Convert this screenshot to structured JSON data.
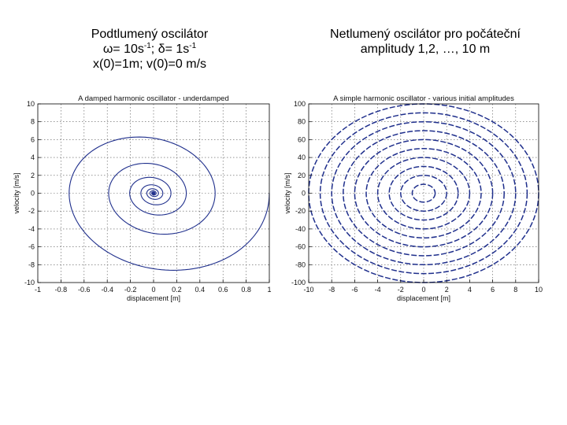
{
  "captions": {
    "left": {
      "line1": "Podtlumený oscilátor",
      "line2_a": "ω= 10s",
      "line2_sup1": "-1",
      "line2_b": "; δ= 1s",
      "line2_sup2": "-1",
      "line3": "x(0)=1m; v(0)=0 m/s"
    },
    "right": {
      "line1": "Netlumený oscilátor pro počáteční",
      "line2": "amplitudy 1,2, …, 10 m"
    }
  },
  "colors": {
    "curve": "#1f2f8c",
    "grid": "#555555",
    "axis": "#000000"
  },
  "chart_data": [
    {
      "type": "line",
      "title": "A damped harmonic oscillator - underdamped",
      "xlabel": "displacement [m]",
      "ylabel": "velocity [m/s]",
      "xlim": [
        -1,
        1
      ],
      "ylim": [
        -10,
        10
      ],
      "xticks": [
        -1,
        -0.8,
        -0.6,
        -0.4,
        -0.2,
        0,
        0.2,
        0.4,
        0.6,
        0.8,
        1
      ],
      "xtick_labels": [
        "-1",
        "-0.8",
        "-0.6",
        "-0.4",
        "-0.2",
        "0",
        "0.2",
        "0.4",
        "0.6",
        "0.8",
        "1"
      ],
      "yticks": [
        -10,
        -8,
        -6,
        -4,
        -2,
        0,
        2,
        4,
        6,
        8,
        10
      ],
      "ytick_labels": [
        "-10",
        "-8",
        "-6",
        "-4",
        "-2",
        "0",
        "2",
        "4",
        "6",
        "8",
        "10"
      ],
      "grid": true,
      "series": [
        {
          "kind": "damped-spiral",
          "omega": 10,
          "delta": 1,
          "x0": 1,
          "v0": 0
        }
      ]
    },
    {
      "type": "line",
      "title": "A simple harmonic oscillator - various initial amplitudes",
      "xlabel": "displacement [m]",
      "ylabel": "velocity [m/s]",
      "xlim": [
        -10,
        10
      ],
      "ylim": [
        -100,
        100
      ],
      "xticks": [
        -10,
        -8,
        -6,
        -4,
        -2,
        0,
        2,
        4,
        6,
        8,
        10
      ],
      "xtick_labels": [
        "-10",
        "-8",
        "-6",
        "-4",
        "-2",
        "0",
        "2",
        "4",
        "6",
        "8",
        "10"
      ],
      "yticks": [
        -100,
        -80,
        -60,
        -40,
        -20,
        0,
        20,
        40,
        60,
        80,
        100
      ],
      "ytick_labels": [
        "-100",
        "-80",
        "-60",
        "-40",
        "-20",
        "0",
        "20",
        "40",
        "60",
        "80",
        "100"
      ],
      "grid": true,
      "series": [
        {
          "kind": "ellipses",
          "omega": 10,
          "amplitudes": [
            1,
            2,
            3,
            4,
            5,
            6,
            7,
            8,
            9,
            10
          ]
        }
      ]
    }
  ]
}
